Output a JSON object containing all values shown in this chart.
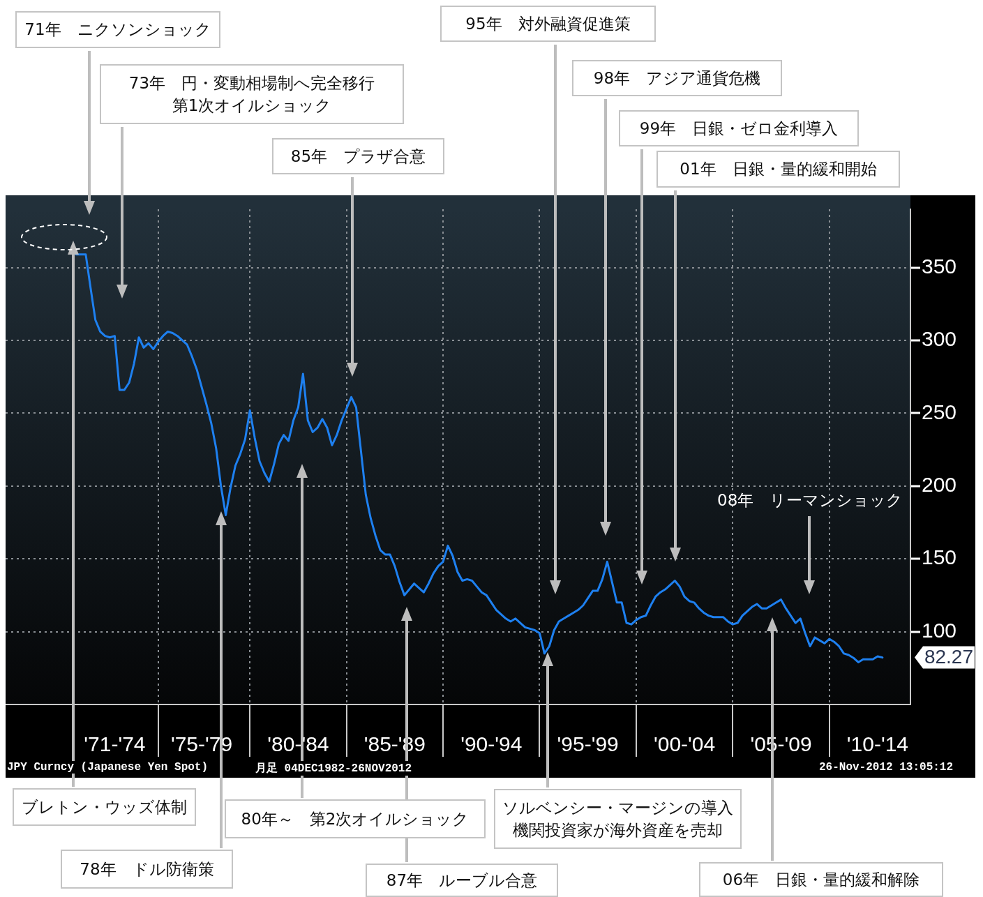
{
  "chart_data": {
    "type": "line",
    "categories": [
      null,
      null,
      null,
      null,
      null,
      null,
      null,
      null,
      "'71-'74",
      null,
      null,
      null,
      null,
      null,
      null,
      null,
      null,
      null,
      null,
      null,
      null,
      null,
      null,
      null,
      null,
      null,
      "'75-'79",
      null,
      null,
      null,
      null,
      null,
      null,
      null,
      null,
      null,
      null,
      null,
      null,
      null,
      null,
      null,
      null,
      null,
      null,
      null,
      "'80-'84",
      null,
      null,
      null,
      null,
      null,
      null,
      null,
      null,
      null,
      null,
      null,
      null,
      null,
      null,
      null,
      null,
      null,
      null,
      null,
      "'85-'89",
      null,
      null,
      null,
      null,
      null,
      null,
      null,
      null,
      null,
      null,
      null,
      null,
      null,
      null,
      null,
      null,
      null,
      null,
      null,
      "'90-'94",
      null,
      null,
      null,
      null,
      null,
      null,
      null,
      null,
      null,
      null,
      null,
      null,
      null,
      null,
      null,
      null,
      null,
      null,
      null,
      "'95-'99",
      null,
      null,
      null,
      null,
      null,
      null,
      null,
      null,
      null,
      null,
      null,
      null,
      null,
      null,
      null,
      null,
      null,
      null,
      null,
      "'00-'04",
      null,
      null,
      null,
      null,
      null,
      null,
      null,
      null,
      null,
      null,
      null,
      null,
      null,
      null,
      null,
      null,
      null,
      null,
      null,
      "'05-'09",
      null,
      null,
      null,
      null,
      null,
      null,
      null,
      null,
      null,
      null,
      null,
      null,
      null,
      null,
      null,
      null,
      null,
      null,
      null,
      "'10-'14",
      null
    ],
    "series": [
      {
        "color": "#1e80f0",
        "values": [
          359,
          359,
          359,
          336,
          314,
          306,
          303,
          302,
          303,
          266,
          266,
          271,
          284,
          302,
          295,
          298,
          294,
          299,
          303,
          306,
          305,
          303,
          300,
          297,
          289,
          280,
          268,
          256,
          243,
          226,
          200,
          180,
          199,
          214,
          222,
          232,
          252,
          233,
          217,
          209,
          203,
          215,
          229,
          235,
          231,
          245,
          254,
          277,
          245,
          237,
          240,
          246,
          240,
          228,
          235,
          245,
          253,
          261,
          254,
          224,
          194,
          178,
          166,
          156,
          153,
          153,
          145,
          134,
          125,
          129,
          133,
          130,
          127,
          133,
          140,
          145,
          148,
          159,
          152,
          141,
          135,
          136,
          135,
          131,
          127,
          125,
          120,
          115,
          112,
          109,
          107,
          109,
          106,
          103,
          102,
          101,
          99,
          85,
          90,
          101,
          107,
          109,
          111,
          113,
          115,
          118,
          123,
          128,
          128,
          136,
          148,
          134,
          120,
          120,
          106,
          105,
          108,
          110,
          111,
          118,
          124,
          127,
          129,
          132,
          135,
          131,
          124,
          121,
          120,
          116,
          113,
          111,
          110,
          110,
          110,
          107,
          105,
          106,
          111,
          114,
          117,
          119,
          116,
          116,
          118,
          120,
          122,
          116,
          111,
          106,
          109,
          99,
          90,
          96,
          94,
          92,
          95,
          93,
          90,
          85,
          84,
          82,
          79,
          81,
          81,
          81,
          83,
          82.27
        ]
      }
    ],
    "ylim": [
      50,
      390
    ],
    "yticks": [
      100,
      150,
      200,
      250,
      300,
      350
    ],
    "grid": true,
    "marker": "none",
    "annotations": [
      "71年　ニクソンショック",
      "73年　円・変動相場制へ完全移行第1次オイルショック",
      "85年　プラザ合意",
      "95年　対外融資促進策",
      "98年　アジア通貨危機",
      "99年　日銀・ゼロ金利導入",
      "01年　日銀・量的緩和開始",
      "08年　リーマンショック",
      "ブレトン・ウッズ体制",
      "78年　ドル防衛策",
      "80年～　第2次オイルショック",
      "87年　ルーブル合意",
      "ソルベンシー・マージンの導入機関投資家が海外資産を売却",
      "06年　日銀・量的緩和解除",
      "82.27",
      "JPY Curncy (Japanese Yen Spot)",
      "月足 04DEC1982-26NOV2012",
      "26-Nov-2012 13:05:12"
    ]
  }
}
